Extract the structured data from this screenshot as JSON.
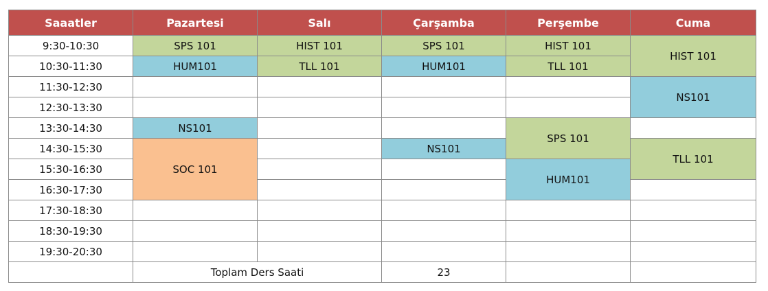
{
  "header": {
    "hours": "Saaatler",
    "mon": "Pazartesi",
    "tue": "Salı",
    "wed": "Çarşamba",
    "thu": "Perşembe",
    "fri": "Cuma"
  },
  "times": [
    "9:30-10:30",
    "10:30-11:30",
    "11:30-12:30",
    "12:30-13:30",
    "13:30-14:30",
    "14:30-15:30",
    "15:30-16:30",
    "16:30-17:30",
    "17:30-18:30",
    "18:30-19:30",
    "19:30-20:30"
  ],
  "classes": {
    "mon_0930": "SPS 101",
    "mon_1030": "HUM101",
    "mon_1330": "NS101",
    "mon_1430": "SOC 101",
    "tue_0930": "HIST 101",
    "tue_1030": "TLL 101",
    "wed_0930": "SPS 101",
    "wed_1030": "HUM101",
    "wed_1430": "NS101",
    "thu_0930": "HIST 101",
    "thu_1030": "TLL 101",
    "thu_1330": "SPS 101",
    "thu_1530": "HUM101",
    "fri_0930": "HIST 101",
    "fri_1130": "NS101",
    "fri_1430": "TLL 101"
  },
  "footer": {
    "total_label": "Toplam Ders Saati",
    "total_value": "23"
  },
  "colors": {
    "header": "#c0504d",
    "green": "#c3d69b",
    "blue": "#92cddc",
    "orange": "#fac090"
  }
}
